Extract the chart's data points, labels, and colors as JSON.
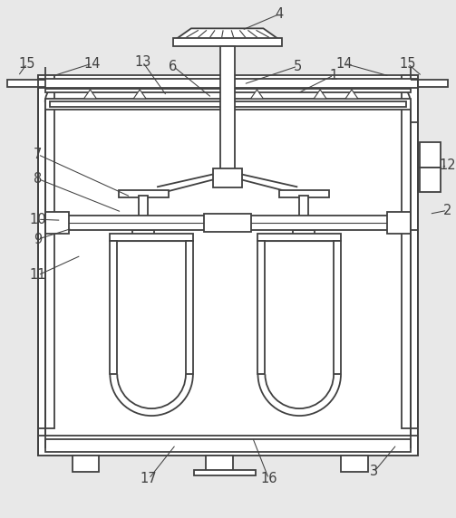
{
  "bg_color": "#e8e8e8",
  "line_color": "#404040",
  "lw": 1.3,
  "tlw": 0.8,
  "label_fontsize": 10.5
}
